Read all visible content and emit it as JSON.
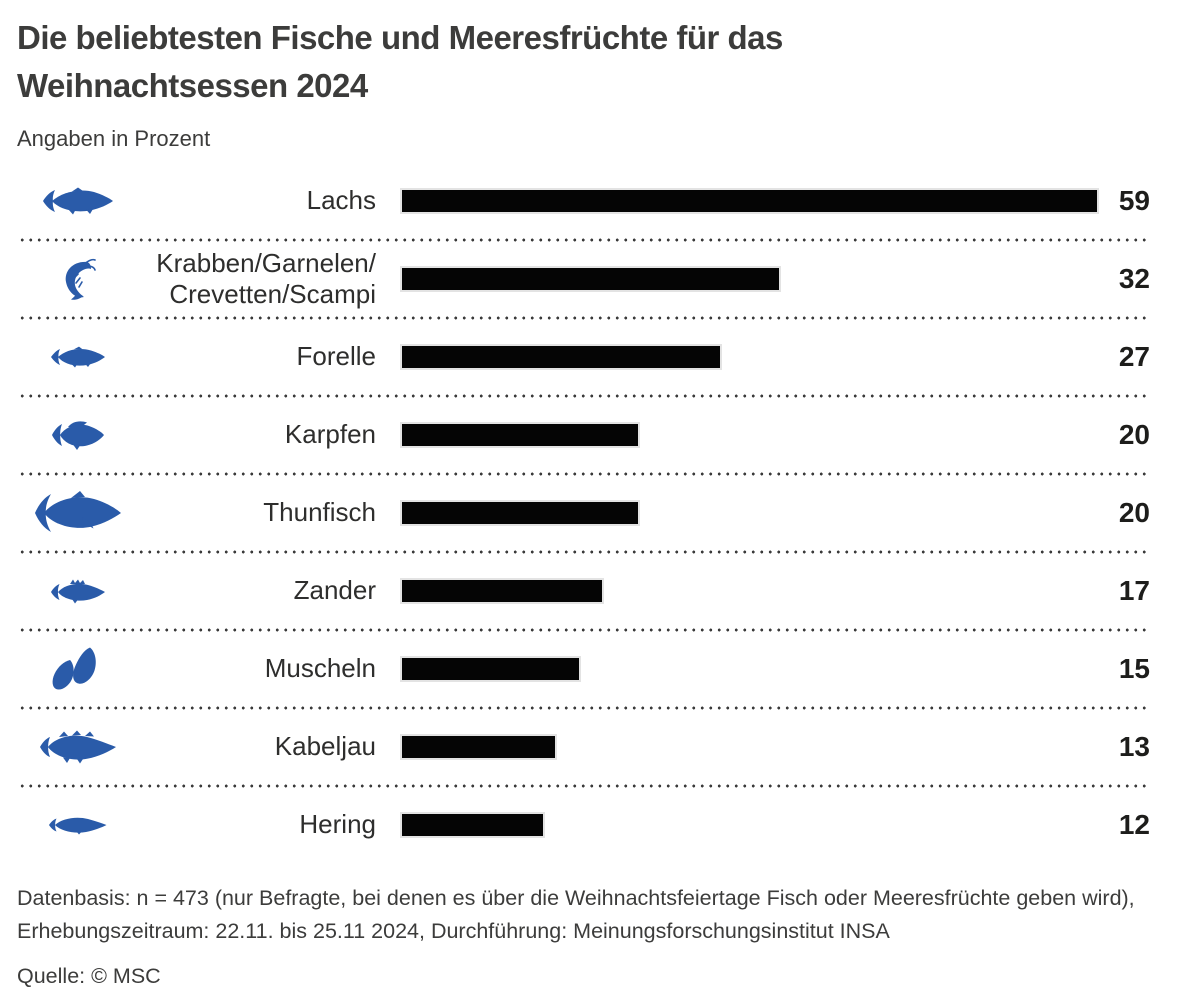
{
  "header": {
    "title": "Die beliebtesten Fische und Meeresfrüchte für das Weihnachtsessen 2024",
    "subtitle": "Angaben in Prozent"
  },
  "chart_data": {
    "type": "bar",
    "orientation": "horizontal",
    "title": "Die beliebtesten Fische und Meeresfrüchte für das Weihnachtsessen 2024",
    "subtitle": "Angaben in Prozent",
    "unit": "percent",
    "categories": [
      "Lachs",
      "Krabben/Garnelen/Crevetten/Scampi",
      "Forelle",
      "Karpfen",
      "Thunfisch",
      "Zander",
      "Muscheln",
      "Kabeljau",
      "Hering"
    ],
    "values": [
      59,
      32,
      27,
      20,
      20,
      17,
      15,
      13,
      12
    ],
    "xlim": [
      0,
      59
    ],
    "grid": false,
    "legend": false,
    "bar_color": "#050505",
    "icon_color": "#2a5ba9",
    "separator_style": "dotted"
  },
  "rows": [
    {
      "icon": "salmon-icon",
      "label_lines": [
        "Lachs"
      ],
      "value": 59
    },
    {
      "icon": "shrimp-icon",
      "label_lines": [
        "Krabben/Garnelen/",
        "Crevetten/Scampi"
      ],
      "value": 32
    },
    {
      "icon": "trout-icon",
      "label_lines": [
        "Forelle"
      ],
      "value": 27
    },
    {
      "icon": "carp-icon",
      "label_lines": [
        "Karpfen"
      ],
      "value": 20
    },
    {
      "icon": "tuna-icon",
      "label_lines": [
        "Thunfisch"
      ],
      "value": 20
    },
    {
      "icon": "zander-icon",
      "label_lines": [
        "Zander"
      ],
      "value": 17
    },
    {
      "icon": "mussels-icon",
      "label_lines": [
        "Muscheln"
      ],
      "value": 15
    },
    {
      "icon": "cod-icon",
      "label_lines": [
        "Kabeljau"
      ],
      "value": 13
    },
    {
      "icon": "herring-icon",
      "label_lines": [
        "Hering"
      ],
      "value": 12
    }
  ],
  "footer": {
    "datenbasis": "Datenbasis: n = 473 (nur Befragte, bei denen es über die Weihnachtsfeiertage Fisch oder Meeresfrüchte geben wird), Erhebungszeitraum: 22.11. bis 25.11 2024, Durchführung: Meinungsforschungsinstitut INSA",
    "quelle": "Quelle: © MSC"
  }
}
